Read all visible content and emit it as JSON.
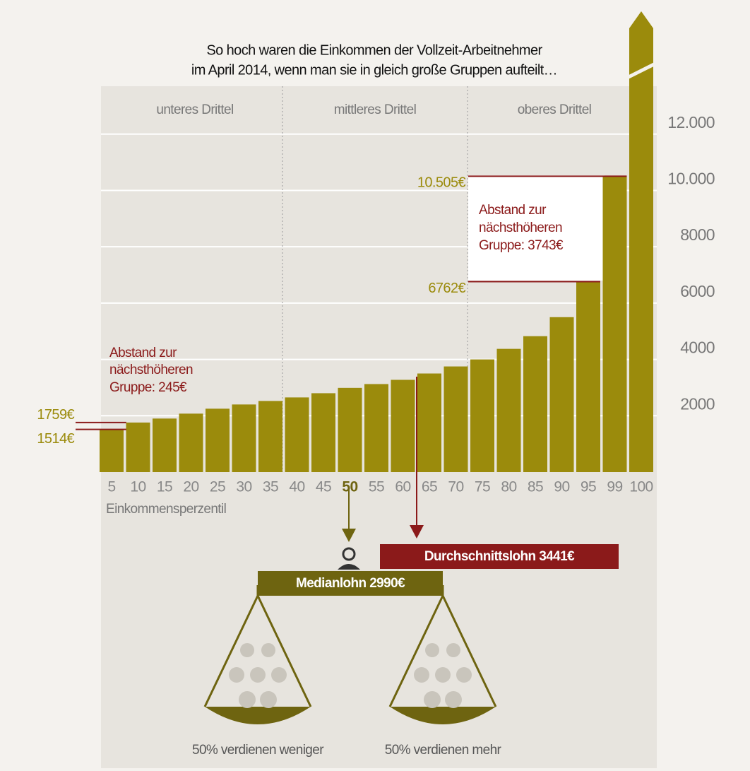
{
  "chart_data": {
    "type": "bar",
    "title_lines": [
      "So hoch waren die Einkommen der Vollzeit-Arbeitnehmer",
      "im April 2014, wenn man sie in gleich große Gruppen aufteilt…"
    ],
    "sections": [
      "unteres Drittel",
      "mittleres Drittel",
      "oberes Drittel"
    ],
    "categories": [
      "5",
      "10",
      "15",
      "20",
      "25",
      "30",
      "35",
      "40",
      "45",
      "50",
      "55",
      "60",
      "65",
      "70",
      "75",
      "80",
      "85",
      "90",
      "95",
      "99",
      "100"
    ],
    "values": [
      1514,
      1759,
      1900,
      2075,
      2250,
      2400,
      2525,
      2650,
      2800,
      2990,
      3125,
      3275,
      3500,
      3750,
      4000,
      4375,
      4825,
      5500,
      6762,
      10505,
      null
    ],
    "value_labels": [
      "1514€",
      "1759€",
      null,
      null,
      null,
      null,
      null,
      null,
      null,
      null,
      null,
      null,
      null,
      null,
      null,
      null,
      null,
      null,
      "6762€",
      "10.505€",
      null
    ],
    "highlight_category": "50",
    "color": "#9b8b0c",
    "ylim": [
      0,
      13700
    ],
    "yticks": [
      2000,
      4000,
      6000,
      8000,
      {
        "value": 10000,
        "label": "10.000"
      },
      {
        "value": 12000,
        "label": "12.000"
      }
    ],
    "grid": true,
    "x_label": "Einkommensperzentil",
    "annotations": {
      "gap_low": [
        "Abstand zur",
        "nächsthöheren",
        "Gruppe: 245€"
      ],
      "gap_high": [
        "Abstand zur",
        "nächsthöheren",
        "Gruppe: 3743€"
      ],
      "mean": "Durchschnittslohn 3441€",
      "median": "Medianlohn 2990€",
      "below": "50% verdienen weniger",
      "above": "50% verdienen mehr"
    }
  }
}
